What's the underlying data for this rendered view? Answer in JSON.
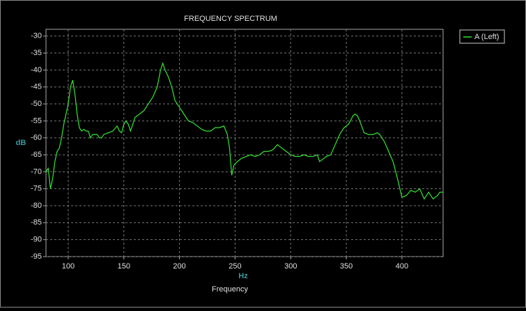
{
  "chart_data": {
    "type": "line",
    "title": "FREQUENCY SPECTRUM",
    "x_label": "Frequency",
    "x_unit": "Hz",
    "y_label": "dB",
    "x": [
      80,
      82,
      84,
      86,
      88,
      90,
      92,
      94,
      96,
      98,
      100,
      102,
      104,
      106,
      108,
      110,
      112,
      114,
      116,
      118,
      120,
      122,
      124,
      126,
      128,
      130,
      132,
      136,
      140,
      144,
      146,
      148,
      150,
      152,
      154,
      156,
      160,
      164,
      168,
      172,
      176,
      180,
      183,
      185,
      187,
      190,
      193,
      196,
      200,
      204,
      208,
      212,
      216,
      220,
      224,
      228,
      232,
      236,
      240,
      243,
      245,
      247,
      249,
      252,
      256,
      260,
      264,
      268,
      272,
      276,
      280,
      284,
      288,
      292,
      296,
      300,
      304,
      308,
      312,
      316,
      320,
      324,
      326,
      328,
      332,
      336,
      340,
      344,
      348,
      352,
      356,
      358,
      360,
      362,
      366,
      370,
      374,
      378,
      380,
      384,
      388,
      392,
      396,
      400,
      404,
      408,
      412,
      416,
      420,
      424,
      428,
      432,
      434,
      437
    ],
    "series": [
      {
        "name": "A (Left)",
        "color": "#33e633",
        "values": [
          -70,
          -69,
          -75,
          -72,
          -67,
          -64,
          -63,
          -60,
          -56,
          -53,
          -50,
          -45,
          -43,
          -47,
          -53,
          -57,
          -58,
          -57.5,
          -58,
          -58,
          -60,
          -59,
          -59,
          -59,
          -60,
          -60,
          -59,
          -58.5,
          -58,
          -56.5,
          -58,
          -58.5,
          -56,
          -55,
          -56,
          -58,
          -54,
          -53,
          -52,
          -50,
          -48,
          -45,
          -40,
          -38,
          -40,
          -42,
          -45,
          -49,
          -51,
          -53,
          -55,
          -55.5,
          -56.5,
          -57.5,
          -58,
          -58,
          -57,
          -57,
          -56.5,
          -59,
          -63,
          -71,
          -68,
          -67,
          -66,
          -65.5,
          -65,
          -65.5,
          -65,
          -64,
          -64,
          -63.5,
          -62,
          -63,
          -64,
          -65,
          -65.5,
          -65.5,
          -65,
          -65.5,
          -65.5,
          -65,
          -67,
          -66.5,
          -65.5,
          -65,
          -62,
          -59,
          -57,
          -56,
          -53.5,
          -53,
          -53.5,
          -55,
          -58.5,
          -59,
          -59,
          -58.5,
          -59,
          -61,
          -64,
          -67,
          -72,
          -77.5,
          -77,
          -75.5,
          -76,
          -75,
          -78,
          -76,
          -78,
          -77,
          -76,
          -76
        ]
      }
    ],
    "xlim": [
      80,
      437
    ],
    "ylim": [
      -95,
      -28
    ],
    "xticks": [
      100,
      150,
      200,
      250,
      300,
      350,
      400
    ],
    "yticks": [
      -30,
      -35,
      -40,
      -45,
      -50,
      -55,
      -60,
      -65,
      -70,
      -75,
      -80,
      -85,
      -90,
      -95
    ],
    "grid": true,
    "legend": "right"
  }
}
